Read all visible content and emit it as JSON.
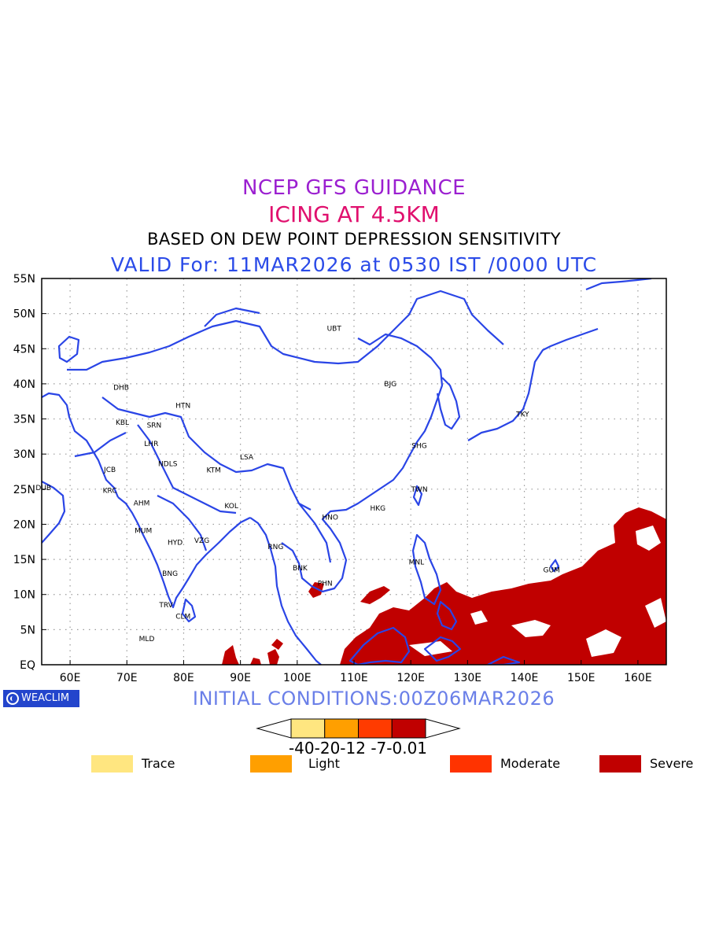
{
  "titles": {
    "line1": "NCEP GFS GUIDANCE",
    "line2": "ICING AT 4.5KM",
    "line3": "BASED ON DEW POINT DEPRESSION SENSITIVITY",
    "line4": "VALID For: 11MAR2026 at 0530 IST /0000 UTC"
  },
  "initial_conditions": "INITIAL CONDITIONS:00Z06MAR2026",
  "brand": "WEACLIM",
  "axes": {
    "lon_ticks": [
      "60E",
      "70E",
      "80E",
      "90E",
      "100E",
      "110E",
      "120E",
      "130E",
      "140E",
      "150E",
      "160E"
    ],
    "lat_ticks": [
      "55N",
      "50N",
      "45N",
      "40N",
      "35N",
      "30N",
      "25N",
      "20N",
      "15N",
      "10N",
      "5N",
      "EQ"
    ],
    "lon_range": [
      55,
      165
    ],
    "lat_range": [
      0,
      55
    ],
    "grid": true
  },
  "colorbar": {
    "levels": [
      "-40",
      "-20",
      "-12",
      "-7",
      "-0.01"
    ],
    "level_label": "-40-20-12 -7-0.01",
    "colors": [
      "#ffe680",
      "#ff9f00",
      "#ff3b00",
      "#c00000"
    ]
  },
  "legend": [
    {
      "label": "Trace",
      "color": "#ffe680"
    },
    {
      "label": "Light",
      "color": "#ff9f00"
    },
    {
      "label": "Moderate",
      "color": "#ff3300"
    },
    {
      "label": "Severe",
      "color": "#c00000"
    }
  ],
  "stations": [
    {
      "code": "UBT",
      "lon": 106.5,
      "lat": 47.9
    },
    {
      "code": "BJG",
      "lon": 116.4,
      "lat": 40.0
    },
    {
      "code": "DHB",
      "lon": 69.0,
      "lat": 39.5
    },
    {
      "code": "HTN",
      "lon": 79.9,
      "lat": 36.9
    },
    {
      "code": "KBL",
      "lon": 69.2,
      "lat": 34.5
    },
    {
      "code": "SRN",
      "lon": 74.8,
      "lat": 34.1
    },
    {
      "code": "TKY",
      "lon": 139.7,
      "lat": 35.7
    },
    {
      "code": "LHR",
      "lon": 74.3,
      "lat": 31.5
    },
    {
      "code": "SHG",
      "lon": 121.5,
      "lat": 31.2
    },
    {
      "code": "LSA",
      "lon": 91.1,
      "lat": 29.6
    },
    {
      "code": "JCB",
      "lon": 67.0,
      "lat": 27.8
    },
    {
      "code": "NDLS",
      "lon": 77.2,
      "lat": 28.6
    },
    {
      "code": "KTM",
      "lon": 85.3,
      "lat": 27.7
    },
    {
      "code": "DUB",
      "lon": 55.3,
      "lat": 25.2
    },
    {
      "code": "TWN",
      "lon": 121.5,
      "lat": 25.0
    },
    {
      "code": "KRC",
      "lon": 67.0,
      "lat": 24.8
    },
    {
      "code": "AHM",
      "lon": 72.6,
      "lat": 23.0
    },
    {
      "code": "KOL",
      "lon": 88.4,
      "lat": 22.6
    },
    {
      "code": "HNO",
      "lon": 105.8,
      "lat": 21.0
    },
    {
      "code": "HKG",
      "lon": 114.2,
      "lat": 22.3
    },
    {
      "code": "MUM",
      "lon": 72.9,
      "lat": 19.1
    },
    {
      "code": "HYD",
      "lon": 78.5,
      "lat": 17.4
    },
    {
      "code": "VZG",
      "lon": 83.2,
      "lat": 17.7
    },
    {
      "code": "RNG",
      "lon": 96.2,
      "lat": 16.8
    },
    {
      "code": "BNK",
      "lon": 100.5,
      "lat": 13.8
    },
    {
      "code": "MNL",
      "lon": 121.0,
      "lat": 14.6
    },
    {
      "code": "GUM",
      "lon": 144.8,
      "lat": 13.5
    },
    {
      "code": "PHN",
      "lon": 104.9,
      "lat": 11.6
    },
    {
      "code": "BNG",
      "lon": 77.6,
      "lat": 13.0
    },
    {
      "code": "TRV",
      "lon": 76.9,
      "lat": 8.5
    },
    {
      "code": "CLM",
      "lon": 79.9,
      "lat": 6.9
    },
    {
      "code": "MLD",
      "lon": 73.5,
      "lat": 3.7
    }
  ]
}
